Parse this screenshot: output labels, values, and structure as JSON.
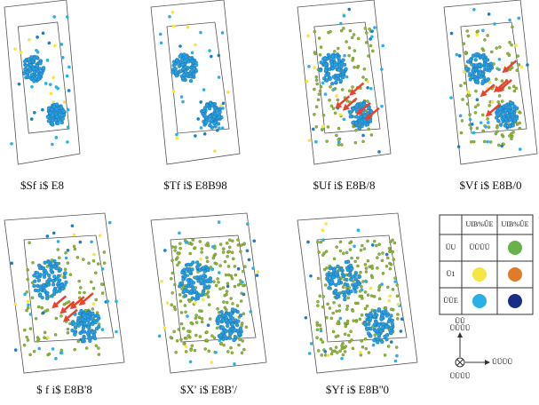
{
  "panels": [
    {
      "label": "$Sf i$ E8"
    },
    {
      "label": "$Tf i$ E8B98"
    },
    {
      "label": "$Uf i$ E8B/8"
    },
    {
      "label": "$Vf i$ E8B/0"
    },
    {
      "label": "$ f i$ E8B'8"
    },
    {
      "label": "$X' i$ E8B'/"
    },
    {
      "label": "$Yf i$ E8B''0"
    }
  ],
  "legend": {
    "header": [
      "UIB%ÛE",
      "UIB%ÛE"
    ],
    "rows": [
      {
        "label": "ÜU",
        "cells": [
          {
            "text": "ÜÜÜÜ"
          },
          {
            "color": "#6ab04c"
          }
        ]
      },
      {
        "label": "Ü1",
        "cells": [
          {
            "color": "#f5e642"
          },
          {
            "color": "#e07b2a"
          }
        ]
      },
      {
        "label": "ÜÜE",
        "cells": [
          {
            "color": "#29b0e8"
          },
          {
            "color": "#1b2e86"
          }
        ]
      }
    ]
  },
  "axes": {
    "up_top": "ÜÜ",
    "up": "ÜÜÜÜ",
    "right": "ÜÜÜÜ",
    "origin": "ÜÜÜÜ"
  }
}
